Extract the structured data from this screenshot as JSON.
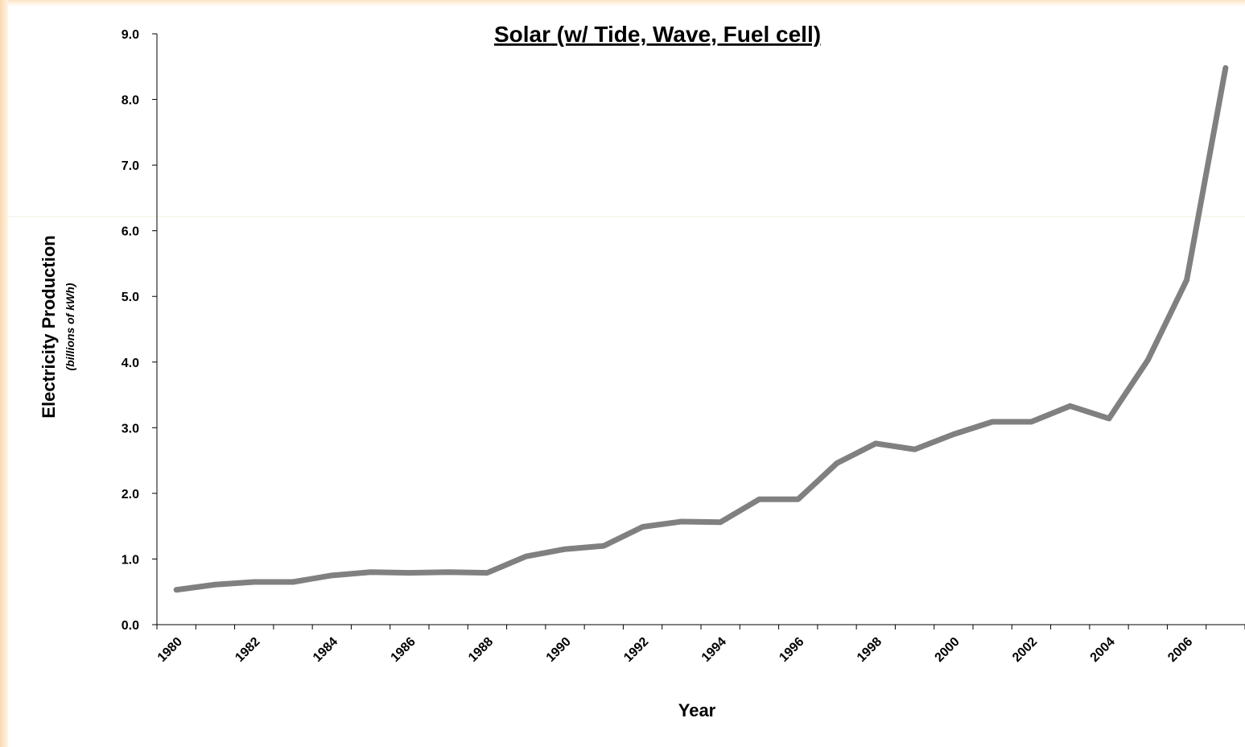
{
  "chart_data": {
    "type": "line",
    "title": "Solar (w/ Tide, Wave, Fuel cell)",
    "x_label": "Year",
    "y_label": "Electricity Production",
    "y_sublabel": "(billions of kWh)",
    "categories": [
      "1980",
      null,
      "1982",
      null,
      "1984",
      null,
      "1986",
      null,
      "1988",
      null,
      "1990",
      null,
      "1992",
      null,
      "1994",
      null,
      "1996",
      null,
      "1998",
      null,
      "2000",
      null,
      "2002",
      null,
      "2004",
      null,
      "2006",
      null
    ],
    "series": [
      {
        "name": "Solar",
        "color": "#808080",
        "values": [
          0.53,
          0.61,
          0.65,
          0.65,
          0.75,
          0.8,
          0.79,
          0.8,
          0.79,
          1.04,
          1.15,
          1.2,
          1.49,
          1.57,
          1.56,
          1.91,
          1.91,
          2.46,
          2.76,
          2.67,
          2.9,
          3.09,
          3.09,
          3.33,
          3.14,
          4.03,
          5.25,
          8.48
        ]
      }
    ],
    "ylim": [
      0,
      9
    ],
    "yticks": [
      {
        "value": 0,
        "label": "0.0"
      },
      {
        "value": 1,
        "label": "1.0"
      },
      {
        "value": 2,
        "label": "2.0"
      },
      {
        "value": 3,
        "label": "3.0"
      },
      {
        "value": 4,
        "label": "4.0"
      },
      {
        "value": 5,
        "label": "5.0"
      },
      {
        "value": 6,
        "label": "6.0"
      },
      {
        "value": 7,
        "label": "7.0"
      },
      {
        "value": 8,
        "label": "8.0"
      },
      {
        "value": 9,
        "label": "9.0"
      }
    ],
    "grid": false
  }
}
